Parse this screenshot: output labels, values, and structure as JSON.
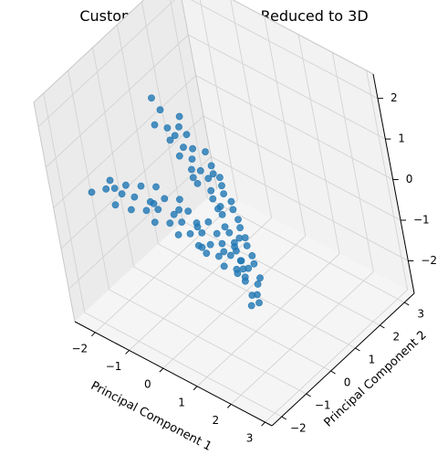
{
  "chart_data": {
    "type": "scatter",
    "projection": "3d",
    "title": "Customer Dataset - PCA Reduced to 3D",
    "xlabel": "Principal Component 1",
    "ylabel": "Principal Component 2",
    "zlabel": "",
    "xlim": [
      -2.6,
      3.2
    ],
    "ylim": [
      -2.4,
      3.4
    ],
    "zlim": [
      -2.8,
      2.6
    ],
    "xticks": [
      -2,
      -1,
      0,
      1,
      2,
      3
    ],
    "yticks": [
      -2,
      -1,
      0,
      1,
      2,
      3
    ],
    "zticks": [
      -2,
      -1,
      0,
      1,
      2
    ],
    "grid": true,
    "legend": "none",
    "colors": {
      "points": "#1f77b4",
      "pane": "#f2f2f2",
      "grid": "#d9d9d9"
    },
    "series": [
      {
        "points": [
          [
            -2.4,
            1.5,
            0.6
          ],
          [
            -2.0,
            1.3,
            0.6
          ],
          [
            -1.8,
            0.8,
            0.6
          ],
          [
            -1.6,
            1.5,
            0.5
          ],
          [
            -1.5,
            0.9,
            0.6
          ],
          [
            -1.4,
            1.2,
            0.5
          ],
          [
            -1.2,
            0.6,
            0.6
          ],
          [
            -1.1,
            1.1,
            0.5
          ],
          [
            -1.0,
            0.8,
            0.4
          ],
          [
            -0.8,
            0.4,
            0.5
          ],
          [
            -0.8,
            0.9,
            0.4
          ],
          [
            -0.6,
            0.6,
            0.4
          ],
          [
            -0.5,
            1.0,
            0.4
          ],
          [
            -0.4,
            0.3,
            0.4
          ],
          [
            -0.3,
            0.5,
            0.3
          ],
          [
            -0.2,
            0.8,
            0.3
          ],
          [
            -0.1,
            0.1,
            0.3
          ],
          [
            0.0,
            0.4,
            0.3
          ],
          [
            0.1,
            0.7,
            0.2
          ],
          [
            0.2,
            0.2,
            0.2
          ],
          [
            0.3,
            0.5,
            0.2
          ],
          [
            0.4,
            0.0,
            0.2
          ],
          [
            0.5,
            0.3,
            0.2
          ],
          [
            0.6,
            -0.1,
            0.1
          ],
          [
            0.7,
            0.3,
            0.1
          ],
          [
            0.8,
            -0.2,
            0.1
          ],
          [
            0.9,
            0.1,
            0.1
          ],
          [
            1.0,
            -0.4,
            0.0
          ],
          [
            1.1,
            0.0,
            0.0
          ],
          [
            1.2,
            -0.5,
            0.0
          ],
          [
            1.3,
            -0.2,
            0.0
          ],
          [
            1.4,
            -0.6,
            -0.1
          ],
          [
            1.5,
            -0.3,
            -0.1
          ],
          [
            1.6,
            -0.8,
            -0.1
          ],
          [
            1.7,
            -0.5,
            -0.1
          ],
          [
            1.8,
            -0.9,
            -0.2
          ],
          [
            1.9,
            -0.6,
            -0.2
          ],
          [
            2.0,
            -1.1,
            -0.2
          ],
          [
            2.2,
            -1.3,
            -0.2
          ],
          [
            2.4,
            -1.0,
            -0.3
          ],
          [
            2.6,
            -1.6,
            -0.3
          ],
          [
            2.8,
            -1.9,
            -0.3
          ],
          [
            -0.3,
            0.2,
            0.3
          ],
          [
            0.6,
            0.0,
            0.1
          ],
          [
            1.4,
            -0.4,
            -0.1
          ],
          [
            2.1,
            -0.8,
            -0.2
          ],
          [
            -1.3,
            0.9,
            0.5
          ],
          [
            0.0,
            0.6,
            0.3
          ]
        ]
      },
      {
        "points": [
          [
            -2.2,
            -1.4,
            0.0
          ],
          [
            -2.0,
            -0.9,
            0.1
          ],
          [
            -1.9,
            -1.2,
            0.1
          ],
          [
            -1.7,
            -0.7,
            0.0
          ],
          [
            -1.6,
            -1.0,
            0.0
          ],
          [
            -1.5,
            -1.4,
            0.0
          ],
          [
            -1.4,
            -0.5,
            0.0
          ],
          [
            -1.3,
            -0.9,
            0.0
          ],
          [
            -1.2,
            -1.2,
            -0.1
          ],
          [
            -1.1,
            -0.3,
            0.0
          ],
          [
            -1.0,
            -0.7,
            -0.1
          ],
          [
            -0.9,
            -1.0,
            -0.1
          ],
          [
            -0.8,
            -0.4,
            -0.1
          ],
          [
            -0.7,
            -0.8,
            -0.1
          ],
          [
            -0.6,
            -1.1,
            -0.2
          ],
          [
            -0.5,
            -0.2,
            -0.1
          ],
          [
            -0.4,
            -0.6,
            -0.2
          ],
          [
            -0.3,
            -0.9,
            -0.2
          ],
          [
            -0.2,
            -0.3,
            -0.2
          ],
          [
            -0.1,
            -0.7,
            -0.2
          ],
          [
            0.0,
            -1.0,
            -0.3
          ],
          [
            0.1,
            -0.4,
            -0.3
          ],
          [
            0.2,
            -0.8,
            -0.3
          ],
          [
            0.3,
            -0.2,
            -0.3
          ],
          [
            0.4,
            -0.6,
            -0.3
          ],
          [
            0.5,
            -0.9,
            -0.4
          ],
          [
            0.6,
            -0.3,
            -0.4
          ],
          [
            0.7,
            -0.7,
            -0.4
          ],
          [
            0.8,
            -1.0,
            -0.4
          ],
          [
            0.9,
            -0.5,
            -0.4
          ],
          [
            1.0,
            -0.8,
            -0.5
          ],
          [
            1.1,
            -0.3,
            -0.5
          ],
          [
            1.2,
            -0.6,
            -0.5
          ],
          [
            1.3,
            -1.0,
            -0.5
          ],
          [
            1.4,
            -0.5,
            -0.6
          ],
          [
            1.5,
            -0.8,
            -0.6
          ],
          [
            1.7,
            -0.6,
            -0.6
          ],
          [
            1.9,
            -1.0,
            -0.6
          ],
          [
            2.1,
            -0.8,
            -0.7
          ],
          [
            2.3,
            -1.1,
            -0.7
          ],
          [
            2.5,
            -1.3,
            -0.7
          ],
          [
            -1.8,
            -1.0,
            0.05
          ],
          [
            -0.9,
            -0.7,
            -0.1
          ],
          [
            0.2,
            -0.5,
            -0.3
          ],
          [
            1.0,
            -0.6,
            -0.5
          ],
          [
            1.6,
            -0.9,
            -0.6
          ],
          [
            -0.4,
            -0.4,
            -0.2
          ],
          [
            0.6,
            -0.9,
            -0.4
          ]
        ]
      }
    ]
  }
}
